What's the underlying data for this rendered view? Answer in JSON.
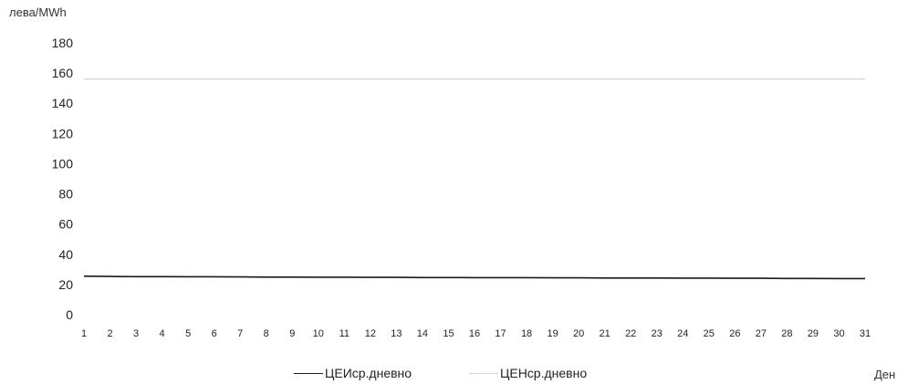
{
  "chart_data": {
    "type": "line",
    "title": "",
    "ylabel": "лева/MWh",
    "xlabel": "Ден",
    "ylim": [
      0,
      180
    ],
    "yticks": [
      0,
      20,
      40,
      60,
      80,
      100,
      120,
      140,
      160,
      180
    ],
    "categories": [
      "1",
      "2",
      "3",
      "4",
      "5",
      "6",
      "7",
      "8",
      "9",
      "10",
      "11",
      "12",
      "13",
      "14",
      "15",
      "16",
      "17",
      "18",
      "19",
      "20",
      "21",
      "22",
      "23",
      "24",
      "25",
      "26",
      "27",
      "28",
      "29",
      "30",
      "31"
    ],
    "series": [
      {
        "name": "ЦЕИср.дневно",
        "color": "#1a1a1a",
        "values": [
          25.5,
          25.3,
          25.2,
          25.2,
          25.1,
          25.1,
          25.0,
          24.9,
          24.9,
          24.8,
          24.8,
          24.7,
          24.7,
          24.6,
          24.6,
          24.5,
          24.5,
          24.5,
          24.4,
          24.4,
          24.3,
          24.3,
          24.3,
          24.2,
          24.2,
          24.1,
          24.1,
          24.0,
          24.0,
          23.9,
          23.9
        ]
      },
      {
        "name": "ЦЕНср.дневно",
        "color": "#d4d4d4",
        "values": [
          156,
          156,
          156,
          156,
          156,
          156,
          156,
          156,
          156,
          156,
          156,
          156,
          156,
          156,
          156,
          156,
          156,
          156,
          156,
          156,
          156,
          156,
          156,
          156,
          156,
          156,
          156,
          156,
          156,
          156,
          156
        ]
      }
    ],
    "grid": false,
    "legend": "bottom"
  }
}
